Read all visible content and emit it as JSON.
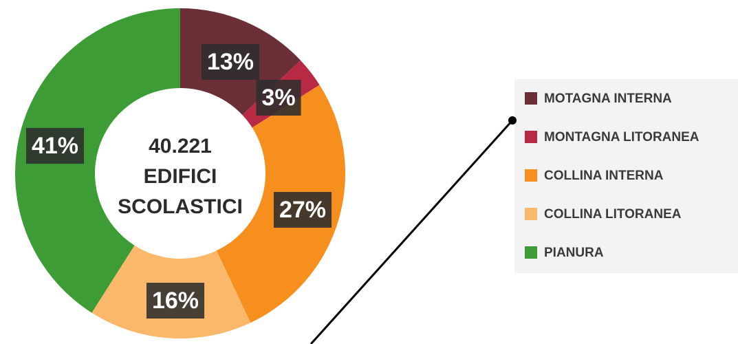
{
  "chart_data": {
    "type": "donut",
    "center_label": [
      "40.221",
      "EDIFICI",
      "SCOLASTICI"
    ],
    "categories": [
      "MOTAGNA INTERNA",
      "MONTAGNA LITORANEA",
      "COLLINA INTERNA",
      "COLLINA LITORANEA",
      "PIANURA"
    ],
    "values": [
      13,
      3,
      27,
      16,
      41
    ],
    "value_labels": [
      "13%",
      "3%",
      "27%",
      "16%",
      "41%"
    ],
    "colors": [
      "#6b2f38",
      "#b82a43",
      "#f78f1e",
      "#fbb86b",
      "#3d9c36"
    ],
    "legend": "right"
  }
}
